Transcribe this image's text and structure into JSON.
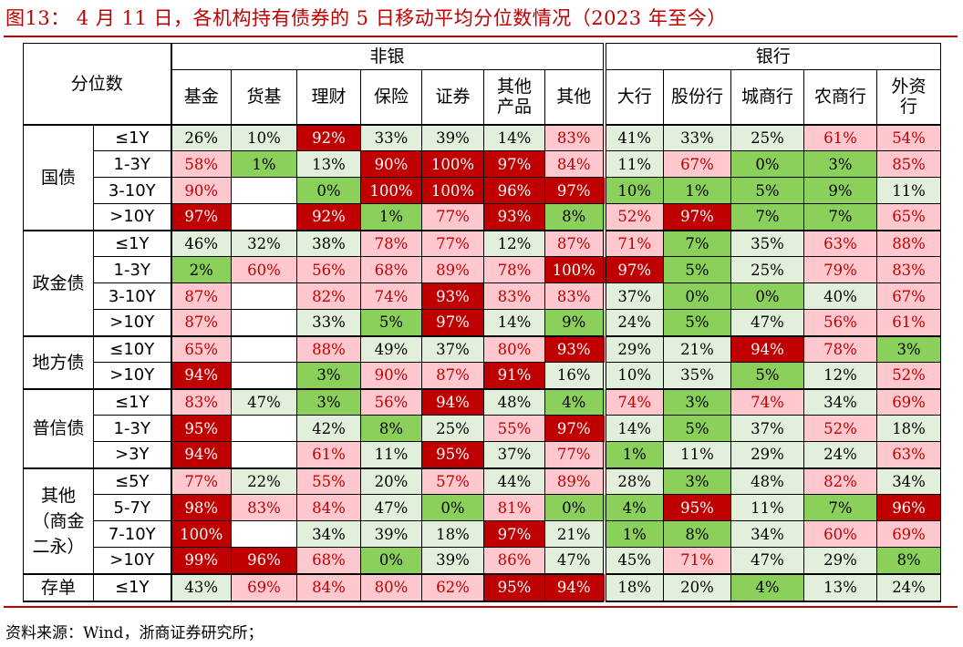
{
  "title": "图13：  4 月 11 日，各机构持有债券的 5 日移动平均分位数情况（2023 年至今）",
  "source": "资料来源：Wind，浙商证券研究所；",
  "colors": {
    "dark_red": "#c00000",
    "light_red": "#ffc7ce",
    "green": "#8bd05a",
    "light_green": "#e2efda",
    "blank": "#ffffff",
    "title_red": "#c00000"
  },
  "header": {
    "corner": "分位数",
    "group_nonbank": "非银",
    "group_bank": "银行",
    "columns": [
      "基金",
      "货基",
      "理财",
      "保险",
      "证券",
      "其他产品",
      "其他",
      "大行",
      "股份行",
      "城商行",
      "农商行",
      "外资行"
    ]
  },
  "groups": [
    {
      "name": "国债",
      "rows": [
        {
          "tenor": "≤1Y",
          "cells": [
            [
              "26%",
              "lg"
            ],
            [
              "10%",
              "lg"
            ],
            [
              "92%",
              "dr"
            ],
            [
              "33%",
              "lg"
            ],
            [
              "39%",
              "lg"
            ],
            [
              "14%",
              "lg"
            ],
            [
              "83%",
              "lr"
            ],
            [
              "41%",
              "lg"
            ],
            [
              "33%",
              "lg"
            ],
            [
              "25%",
              "lg"
            ],
            [
              "61%",
              "lr"
            ],
            [
              "54%",
              "lr"
            ]
          ]
        },
        {
          "tenor": "1-3Y",
          "cells": [
            [
              "58%",
              "lr"
            ],
            [
              "1%",
              "g"
            ],
            [
              "13%",
              "lg"
            ],
            [
              "90%",
              "dr"
            ],
            [
              "100%",
              "dr"
            ],
            [
              "97%",
              "dr"
            ],
            [
              "84%",
              "lr"
            ],
            [
              "11%",
              "lg"
            ],
            [
              "67%",
              "lr"
            ],
            [
              "0%",
              "g"
            ],
            [
              "3%",
              "g"
            ],
            [
              "85%",
              "lr"
            ]
          ]
        },
        {
          "tenor": "3-10Y",
          "cells": [
            [
              "90%",
              "lr"
            ],
            [
              "",
              ""
            ],
            [
              "0%",
              "g"
            ],
            [
              "100%",
              "dr"
            ],
            [
              "100%",
              "dr"
            ],
            [
              "96%",
              "dr"
            ],
            [
              "97%",
              "dr"
            ],
            [
              "10%",
              "g"
            ],
            [
              "1%",
              "g"
            ],
            [
              "5%",
              "g"
            ],
            [
              "9%",
              "g"
            ],
            [
              "11%",
              "lg"
            ]
          ]
        },
        {
          "tenor": ">10Y",
          "cells": [
            [
              "97%",
              "dr"
            ],
            [
              "",
              ""
            ],
            [
              "92%",
              "dr"
            ],
            [
              "1%",
              "g"
            ],
            [
              "77%",
              "lr"
            ],
            [
              "93%",
              "dr"
            ],
            [
              "8%",
              "g"
            ],
            [
              "52%",
              "lr"
            ],
            [
              "97%",
              "dr"
            ],
            [
              "7%",
              "g"
            ],
            [
              "7%",
              "g"
            ],
            [
              "65%",
              "lr"
            ]
          ]
        }
      ]
    },
    {
      "name": "政金债",
      "rows": [
        {
          "tenor": "≤1Y",
          "cells": [
            [
              "46%",
              "lg"
            ],
            [
              "32%",
              "lg"
            ],
            [
              "38%",
              "lg"
            ],
            [
              "78%",
              "lr"
            ],
            [
              "77%",
              "lr"
            ],
            [
              "12%",
              "lg"
            ],
            [
              "87%",
              "lr"
            ],
            [
              "71%",
              "lr"
            ],
            [
              "7%",
              "g"
            ],
            [
              "35%",
              "lg"
            ],
            [
              "63%",
              "lr"
            ],
            [
              "88%",
              "lr"
            ]
          ]
        },
        {
          "tenor": "1-3Y",
          "cells": [
            [
              "2%",
              "g"
            ],
            [
              "60%",
              "lr"
            ],
            [
              "56%",
              "lr"
            ],
            [
              "68%",
              "lr"
            ],
            [
              "89%",
              "lr"
            ],
            [
              "78%",
              "lr"
            ],
            [
              "100%",
              "dr"
            ],
            [
              "97%",
              "dr"
            ],
            [
              "5%",
              "g"
            ],
            [
              "25%",
              "lg"
            ],
            [
              "79%",
              "lr"
            ],
            [
              "83%",
              "lr"
            ]
          ]
        },
        {
          "tenor": "3-10Y",
          "cells": [
            [
              "87%",
              "lr"
            ],
            [
              "",
              ""
            ],
            [
              "82%",
              "lr"
            ],
            [
              "74%",
              "lr"
            ],
            [
              "93%",
              "dr"
            ],
            [
              "83%",
              "lr"
            ],
            [
              "83%",
              "lr"
            ],
            [
              "37%",
              "lg"
            ],
            [
              "0%",
              "g"
            ],
            [
              "0%",
              "g"
            ],
            [
              "40%",
              "lg"
            ],
            [
              "67%",
              "lr"
            ]
          ]
        },
        {
          "tenor": ">10Y",
          "cells": [
            [
              "87%",
              "lr"
            ],
            [
              "",
              ""
            ],
            [
              "33%",
              "lg"
            ],
            [
              "5%",
              "g"
            ],
            [
              "97%",
              "dr"
            ],
            [
              "14%",
              "lg"
            ],
            [
              "9%",
              "g"
            ],
            [
              "24%",
              "lg"
            ],
            [
              "5%",
              "g"
            ],
            [
              "47%",
              "lg"
            ],
            [
              "56%",
              "lr"
            ],
            [
              "61%",
              "lr"
            ]
          ]
        }
      ]
    },
    {
      "name": "地方债",
      "rows": [
        {
          "tenor": "≤10Y",
          "cells": [
            [
              "65%",
              "lr"
            ],
            [
              "",
              ""
            ],
            [
              "88%",
              "lr"
            ],
            [
              "49%",
              "lg"
            ],
            [
              "37%",
              "lg"
            ],
            [
              "80%",
              "lr"
            ],
            [
              "93%",
              "dr"
            ],
            [
              "29%",
              "lg"
            ],
            [
              "21%",
              "lg"
            ],
            [
              "94%",
              "dr"
            ],
            [
              "78%",
              "lr"
            ],
            [
              "3%",
              "g"
            ]
          ]
        },
        {
          "tenor": ">10Y",
          "cells": [
            [
              "94%",
              "dr"
            ],
            [
              "",
              ""
            ],
            [
              "3%",
              "g"
            ],
            [
              "90%",
              "lr"
            ],
            [
              "87%",
              "lr"
            ],
            [
              "91%",
              "dr"
            ],
            [
              "16%",
              "lg"
            ],
            [
              "10%",
              "lg"
            ],
            [
              "35%",
              "lg"
            ],
            [
              "5%",
              "g"
            ],
            [
              "12%",
              "lg"
            ],
            [
              "52%",
              "lr"
            ]
          ]
        }
      ]
    },
    {
      "name": "普信债",
      "rows": [
        {
          "tenor": "≤1Y",
          "cells": [
            [
              "83%",
              "lr"
            ],
            [
              "47%",
              "lg"
            ],
            [
              "3%",
              "g"
            ],
            [
              "56%",
              "lr"
            ],
            [
              "94%",
              "dr"
            ],
            [
              "48%",
              "lg"
            ],
            [
              "4%",
              "g"
            ],
            [
              "74%",
              "lr"
            ],
            [
              "3%",
              "g"
            ],
            [
              "74%",
              "lr"
            ],
            [
              "34%",
              "lg"
            ],
            [
              "69%",
              "lr"
            ]
          ]
        },
        {
          "tenor": "1-3Y",
          "cells": [
            [
              "95%",
              "dr"
            ],
            [
              "",
              ""
            ],
            [
              "42%",
              "lg"
            ],
            [
              "8%",
              "g"
            ],
            [
              "25%",
              "lg"
            ],
            [
              "55%",
              "lr"
            ],
            [
              "97%",
              "dr"
            ],
            [
              "14%",
              "lg"
            ],
            [
              "5%",
              "g"
            ],
            [
              "37%",
              "lg"
            ],
            [
              "52%",
              "lr"
            ],
            [
              "18%",
              "lg"
            ]
          ]
        },
        {
          "tenor": ">3Y",
          "cells": [
            [
              "94%",
              "dr"
            ],
            [
              "",
              ""
            ],
            [
              "61%",
              "lr"
            ],
            [
              "11%",
              "lg"
            ],
            [
              "95%",
              "dr"
            ],
            [
              "37%",
              "lg"
            ],
            [
              "77%",
              "lr"
            ],
            [
              "1%",
              "g"
            ],
            [
              "11%",
              "lg"
            ],
            [
              "29%",
              "lg"
            ],
            [
              "24%",
              "lg"
            ],
            [
              "63%",
              "lr"
            ]
          ]
        }
      ]
    },
    {
      "name": "其他（商金二永）",
      "name_lines": [
        "其他",
        "（商金",
        "二永）"
      ],
      "rows": [
        {
          "tenor": "≤5Y",
          "cells": [
            [
              "77%",
              "lr"
            ],
            [
              "22%",
              "lg"
            ],
            [
              "55%",
              "lr"
            ],
            [
              "20%",
              "lg"
            ],
            [
              "57%",
              "lr"
            ],
            [
              "44%",
              "lg"
            ],
            [
              "89%",
              "lr"
            ],
            [
              "28%",
              "lg"
            ],
            [
              "3%",
              "g"
            ],
            [
              "48%",
              "lg"
            ],
            [
              "82%",
              "lr"
            ],
            [
              "34%",
              "lg"
            ]
          ]
        },
        {
          "tenor": "5-7Y",
          "cells": [
            [
              "98%",
              "dr"
            ],
            [
              "83%",
              "lr"
            ],
            [
              "84%",
              "lr"
            ],
            [
              "47%",
              "lg"
            ],
            [
              "0%",
              "g"
            ],
            [
              "81%",
              "lr"
            ],
            [
              "0%",
              "g"
            ],
            [
              "4%",
              "g"
            ],
            [
              "95%",
              "dr"
            ],
            [
              "11%",
              "lg"
            ],
            [
              "7%",
              "g"
            ],
            [
              "96%",
              "dr"
            ]
          ]
        },
        {
          "tenor": "7-10Y",
          "cells": [
            [
              "100%",
              "dr"
            ],
            [
              "",
              ""
            ],
            [
              "34%",
              "lg"
            ],
            [
              "39%",
              "lg"
            ],
            [
              "18%",
              "lg"
            ],
            [
              "97%",
              "dr"
            ],
            [
              "21%",
              "lg"
            ],
            [
              "1%",
              "g"
            ],
            [
              "8%",
              "g"
            ],
            [
              "34%",
              "lg"
            ],
            [
              "60%",
              "lr"
            ],
            [
              "69%",
              "lr"
            ]
          ]
        },
        {
          "tenor": ">10Y",
          "cells": [
            [
              "99%",
              "dr"
            ],
            [
              "96%",
              "dr"
            ],
            [
              "68%",
              "lr"
            ],
            [
              "0%",
              "g"
            ],
            [
              "39%",
              "lg"
            ],
            [
              "86%",
              "lr"
            ],
            [
              "47%",
              "lg"
            ],
            [
              "45%",
              "lg"
            ],
            [
              "71%",
              "lr"
            ],
            [
              "47%",
              "lg"
            ],
            [
              "29%",
              "lg"
            ],
            [
              "8%",
              "g"
            ]
          ]
        }
      ]
    },
    {
      "name": "存单",
      "rows": [
        {
          "tenor": "≤1Y",
          "cells": [
            [
              "43%",
              "lg"
            ],
            [
              "69%",
              "lr"
            ],
            [
              "84%",
              "lr"
            ],
            [
              "80%",
              "lr"
            ],
            [
              "62%",
              "lr"
            ],
            [
              "95%",
              "dr"
            ],
            [
              "94%",
              "dr"
            ],
            [
              "18%",
              "lg"
            ],
            [
              "20%",
              "lg"
            ],
            [
              "4%",
              "g"
            ],
            [
              "13%",
              "lg"
            ],
            [
              "24%",
              "lg"
            ]
          ]
        }
      ]
    }
  ]
}
